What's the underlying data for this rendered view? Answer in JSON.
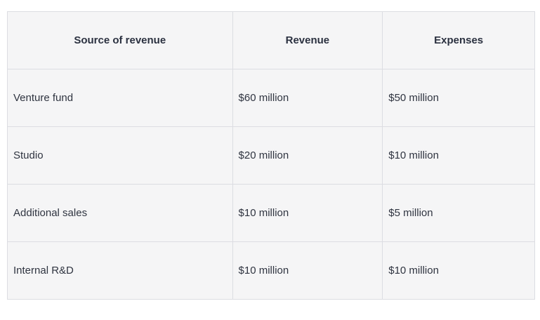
{
  "table": {
    "headers": [
      "Source of revenue",
      "Revenue",
      "Expenses"
    ],
    "rows": [
      [
        "Venture fund",
        "$60 million",
        "$50 million"
      ],
      [
        "Studio",
        "$20 million",
        "$10 million"
      ],
      [
        "Additional sales",
        "$10 million",
        "$5 million"
      ],
      [
        "Internal R&D",
        "$10 million",
        "$10 million"
      ]
    ]
  }
}
